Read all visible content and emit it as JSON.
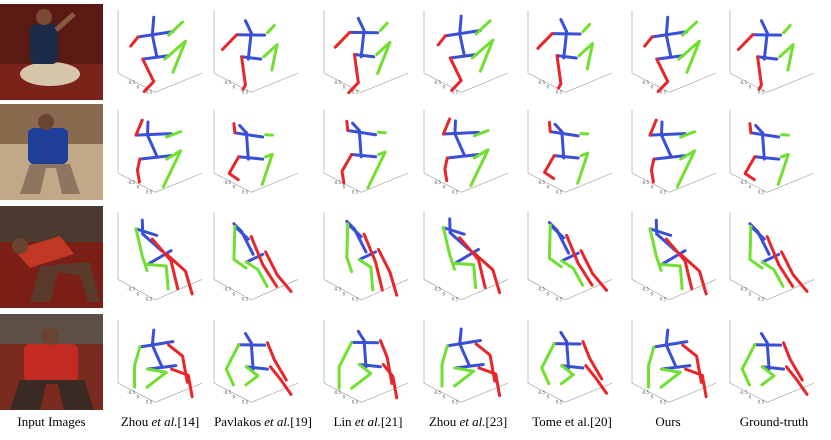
{
  "figure": {
    "columns": [
      {
        "key": "input",
        "label": "Input Images"
      },
      {
        "key": "zhou14",
        "label_parts": [
          "Zhou ",
          "et al.",
          "[14]"
        ]
      },
      {
        "key": "pavlakos19",
        "label_parts": [
          "Pavlakos ",
          "et al.",
          "[19]"
        ]
      },
      {
        "key": "lin21",
        "label_parts": [
          "Lin ",
          "et al.",
          "[21]"
        ]
      },
      {
        "key": "zhou23",
        "label_parts": [
          "Zhou ",
          "et al.",
          "[23]"
        ]
      },
      {
        "key": "tome20",
        "label": "Tome et al.[20]"
      },
      {
        "key": "ours",
        "label": "Ours"
      },
      {
        "key": "ground_truth",
        "label": "Ground-truth"
      }
    ],
    "rows": [
      {
        "axis_ticks": [
          "-0.5",
          "0",
          "0.5"
        ]
      },
      {
        "axis_ticks": [
          "-0.5",
          "0",
          "0.5"
        ]
      },
      {
        "axis_ticks": [
          "-0.5",
          "0",
          "0.5"
        ]
      },
      {
        "axis_ticks": [
          "-0.5",
          "0",
          "0.5"
        ]
      }
    ],
    "colors": {
      "spine": "#3a4fd8",
      "left_limbs": "#e8262a",
      "right_limbs": "#6fe030",
      "axis": "#9a9a9a"
    }
  }
}
